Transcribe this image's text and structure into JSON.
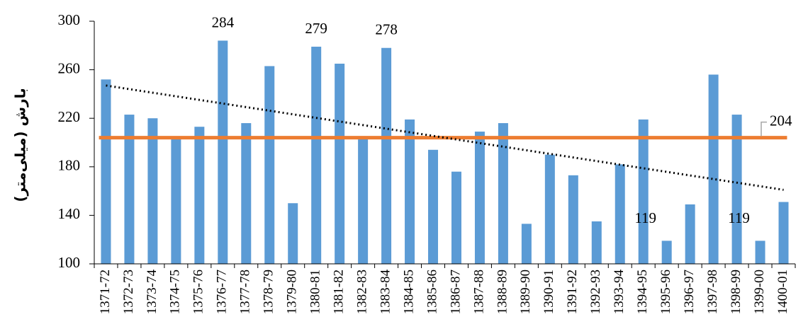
{
  "chart_data": {
    "type": "bar",
    "y_label": "بارش (میلی‌متر)",
    "categories": [
      "1371-72",
      "1372-73",
      "1373-74",
      "1374-75",
      "1375-76",
      "1376-77",
      "1377-78",
      "1378-79",
      "1379-80",
      "1380-81",
      "1381-82",
      "1382-83",
      "1383-84",
      "1384-85",
      "1385-86",
      "1386-87",
      "1387-88",
      "1388-89",
      "1389-90",
      "1390-91",
      "1391-92",
      "1392-93",
      "1393-94",
      "1394-95",
      "1395-96",
      "1396-97",
      "1397-98",
      "1398-99",
      "1399-00",
      "1400-01"
    ],
    "series": [
      {
        "color": "#5b9bd5",
        "values": [
          252,
          223,
          220,
          204,
          213,
          284,
          216,
          263,
          150,
          279,
          265,
          204,
          278,
          219,
          194,
          176,
          209,
          216,
          133,
          190,
          173,
          135,
          182,
          219,
          119,
          149,
          256,
          223,
          119,
          151
        ],
        "value_label_shown": [
          false,
          false,
          false,
          false,
          false,
          true,
          false,
          false,
          false,
          true,
          false,
          false,
          true,
          false,
          false,
          false,
          false,
          false,
          false,
          false,
          false,
          false,
          false,
          false,
          true,
          false,
          false,
          false,
          true,
          false
        ]
      }
    ],
    "mean": {
      "value": 204,
      "color": "#ed7d31"
    },
    "trendline": {
      "start": 247,
      "end": 161,
      "color": "#000000"
    },
    "ylim": [
      100,
      300
    ],
    "yticks": [
      100,
      140,
      180,
      220,
      260,
      300
    ],
    "grid": false
  }
}
